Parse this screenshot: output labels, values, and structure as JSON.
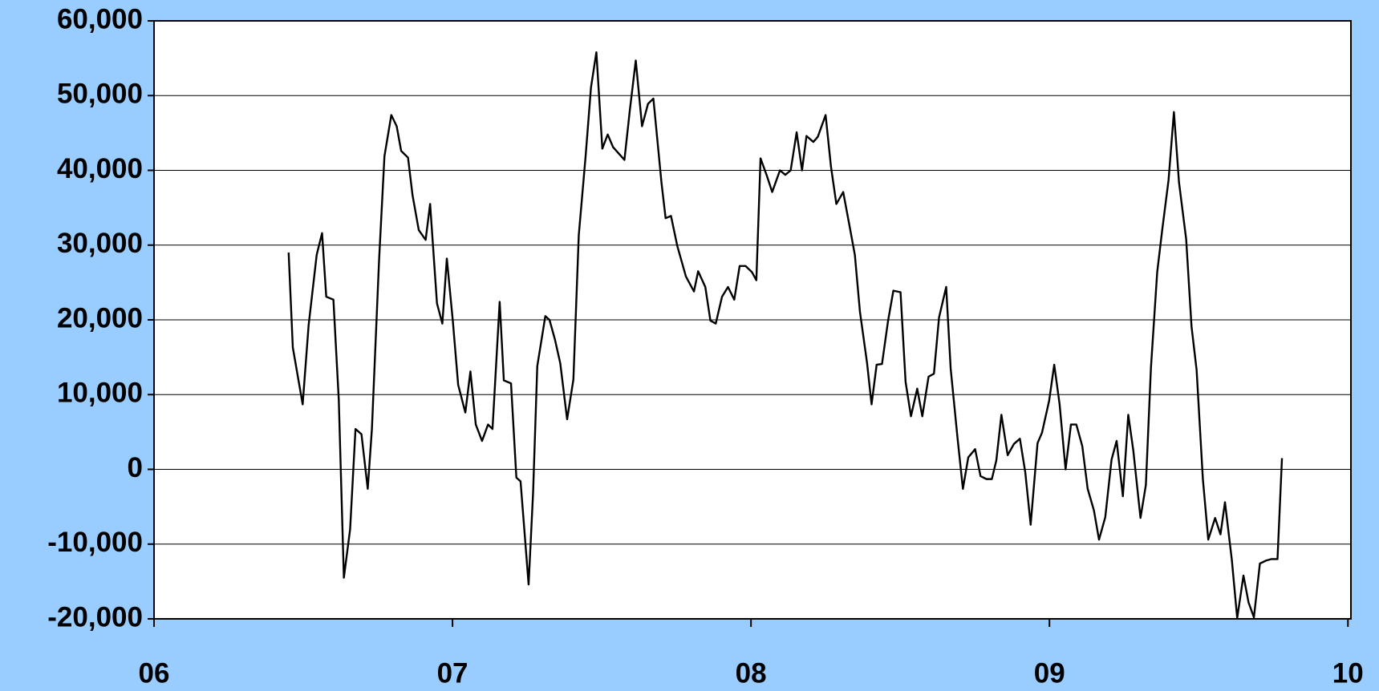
{
  "chart_data": {
    "type": "line",
    "x": [
      6.451,
      6.465,
      6.498,
      6.518,
      6.545,
      6.563,
      6.577,
      6.601,
      6.619,
      6.636,
      6.657,
      6.675,
      6.695,
      6.716,
      6.73,
      6.754,
      6.772,
      6.795,
      6.813,
      6.828,
      6.851,
      6.866,
      6.887,
      6.91,
      6.925,
      6.948,
      6.966,
      6.981,
      7.001,
      7.019,
      7.043,
      7.06,
      7.078,
      7.099,
      7.119,
      7.134,
      7.158,
      7.172,
      7.196,
      7.214,
      7.228,
      7.255,
      7.27,
      7.284,
      7.311,
      7.325,
      7.343,
      7.361,
      7.384,
      7.405,
      7.423,
      7.446,
      7.464,
      7.482,
      7.502,
      7.52,
      7.538,
      7.576,
      7.594,
      7.614,
      7.635,
      7.655,
      7.673,
      7.7,
      7.714,
      7.732,
      7.753,
      7.782,
      7.809,
      7.823,
      7.847,
      7.864,
      7.882,
      7.903,
      7.923,
      7.944,
      7.962,
      7.982,
      8.003,
      8.018,
      8.032,
      8.053,
      8.071,
      8.097,
      8.115,
      8.133,
      8.153,
      8.171,
      8.186,
      8.209,
      8.224,
      8.25,
      8.268,
      8.286,
      8.309,
      8.33,
      8.348,
      8.365,
      8.389,
      8.404,
      8.421,
      8.439,
      8.459,
      8.477,
      8.501,
      8.518,
      8.536,
      8.557,
      8.574,
      8.595,
      8.613,
      8.63,
      8.654,
      8.669,
      8.692,
      8.71,
      8.728,
      8.751,
      8.769,
      8.789,
      8.807,
      8.822,
      8.839,
      8.86,
      8.881,
      8.901,
      8.919,
      8.937,
      8.96,
      8.975,
      8.999,
      9.016,
      9.034,
      9.054,
      9.072,
      9.09,
      9.11,
      9.128,
      9.149,
      9.166,
      9.187,
      9.208,
      9.225,
      9.246,
      9.264,
      9.281,
      9.305,
      9.323,
      9.34,
      9.361,
      9.378,
      9.399,
      9.417,
      9.434,
      9.458,
      9.476,
      9.493,
      9.514,
      9.532,
      9.555,
      9.573,
      9.588,
      9.611,
      9.629,
      9.65,
      9.667,
      9.685,
      9.705,
      9.726,
      9.744,
      9.764,
      9.779
    ],
    "values": [
      29000,
      16300,
      8700,
      19300,
      28700,
      31600,
      23100,
      22700,
      9300,
      -14500,
      -8000,
      5400,
      4700,
      -2600,
      5400,
      28000,
      41900,
      47400,
      45900,
      42600,
      41700,
      36700,
      32000,
      30700,
      35500,
      22200,
      19500,
      28200,
      19900,
      11300,
      7600,
      13100,
      6000,
      3800,
      6000,
      5400,
      22400,
      11900,
      11500,
      -1100,
      -1600,
      -15400,
      -3100,
      13800,
      20500,
      20000,
      17400,
      14200,
      6700,
      12000,
      31300,
      41900,
      51100,
      55800,
      42900,
      44800,
      43100,
      41400,
      48000,
      54700,
      45900,
      48900,
      49600,
      38400,
      33600,
      33900,
      29900,
      25800,
      23800,
      26500,
      24400,
      19900,
      19500,
      23100,
      24400,
      22700,
      27200,
      27200,
      26400,
      25300,
      41600,
      39300,
      37100,
      40000,
      39400,
      40000,
      45100,
      40000,
      44600,
      43800,
      44500,
      47400,
      40500,
      35500,
      37100,
      32600,
      28700,
      21100,
      14200,
      8700,
      14000,
      14100,
      19800,
      23900,
      23700,
      11700,
      7100,
      10800,
      7100,
      12400,
      12800,
      20300,
      24400,
      13500,
      4200,
      -2600,
      1600,
      2700,
      -900,
      -1300,
      -1300,
      1200,
      7300,
      1900,
      3400,
      4100,
      -400,
      -7400,
      3500,
      4900,
      9200,
      14000,
      8700,
      0,
      6000,
      6000,
      3100,
      -2600,
      -5500,
      -9400,
      -6400,
      1300,
      3800,
      -3600,
      7300,
      2500,
      -6500,
      -2100,
      13600,
      26400,
      32100,
      38700,
      47800,
      38400,
      30800,
      19100,
      13300,
      -1300,
      -9400,
      -6500,
      -8700,
      -4400,
      -12100,
      -19900,
      -14200,
      -17800,
      -19800,
      -12600,
      -12200,
      -12000,
      -12000,
      1500
    ],
    "color": "#000000",
    "xlim": [
      6,
      10.01
    ],
    "xticks": [
      {
        "value": 6,
        "label": "06"
      },
      {
        "value": 7,
        "label": "07"
      },
      {
        "value": 8,
        "label": "08"
      },
      {
        "value": 9,
        "label": "09"
      },
      {
        "value": 10,
        "label": "10"
      }
    ],
    "ylim": [
      -20000,
      60000
    ],
    "yticks": [
      {
        "value": -20000,
        "label": "-20,000"
      },
      {
        "value": -10000,
        "label": "-10,000"
      },
      0,
      {
        "value": 10000,
        "label": "10,000"
      },
      {
        "value": 20000,
        "label": "20,000"
      },
      {
        "value": 30000,
        "label": "30,000"
      },
      {
        "value": 40000,
        "label": "40,000"
      },
      {
        "value": 50000,
        "label": "50,000"
      },
      {
        "value": 60000,
        "label": "60,000"
      }
    ],
    "grid": true
  }
}
